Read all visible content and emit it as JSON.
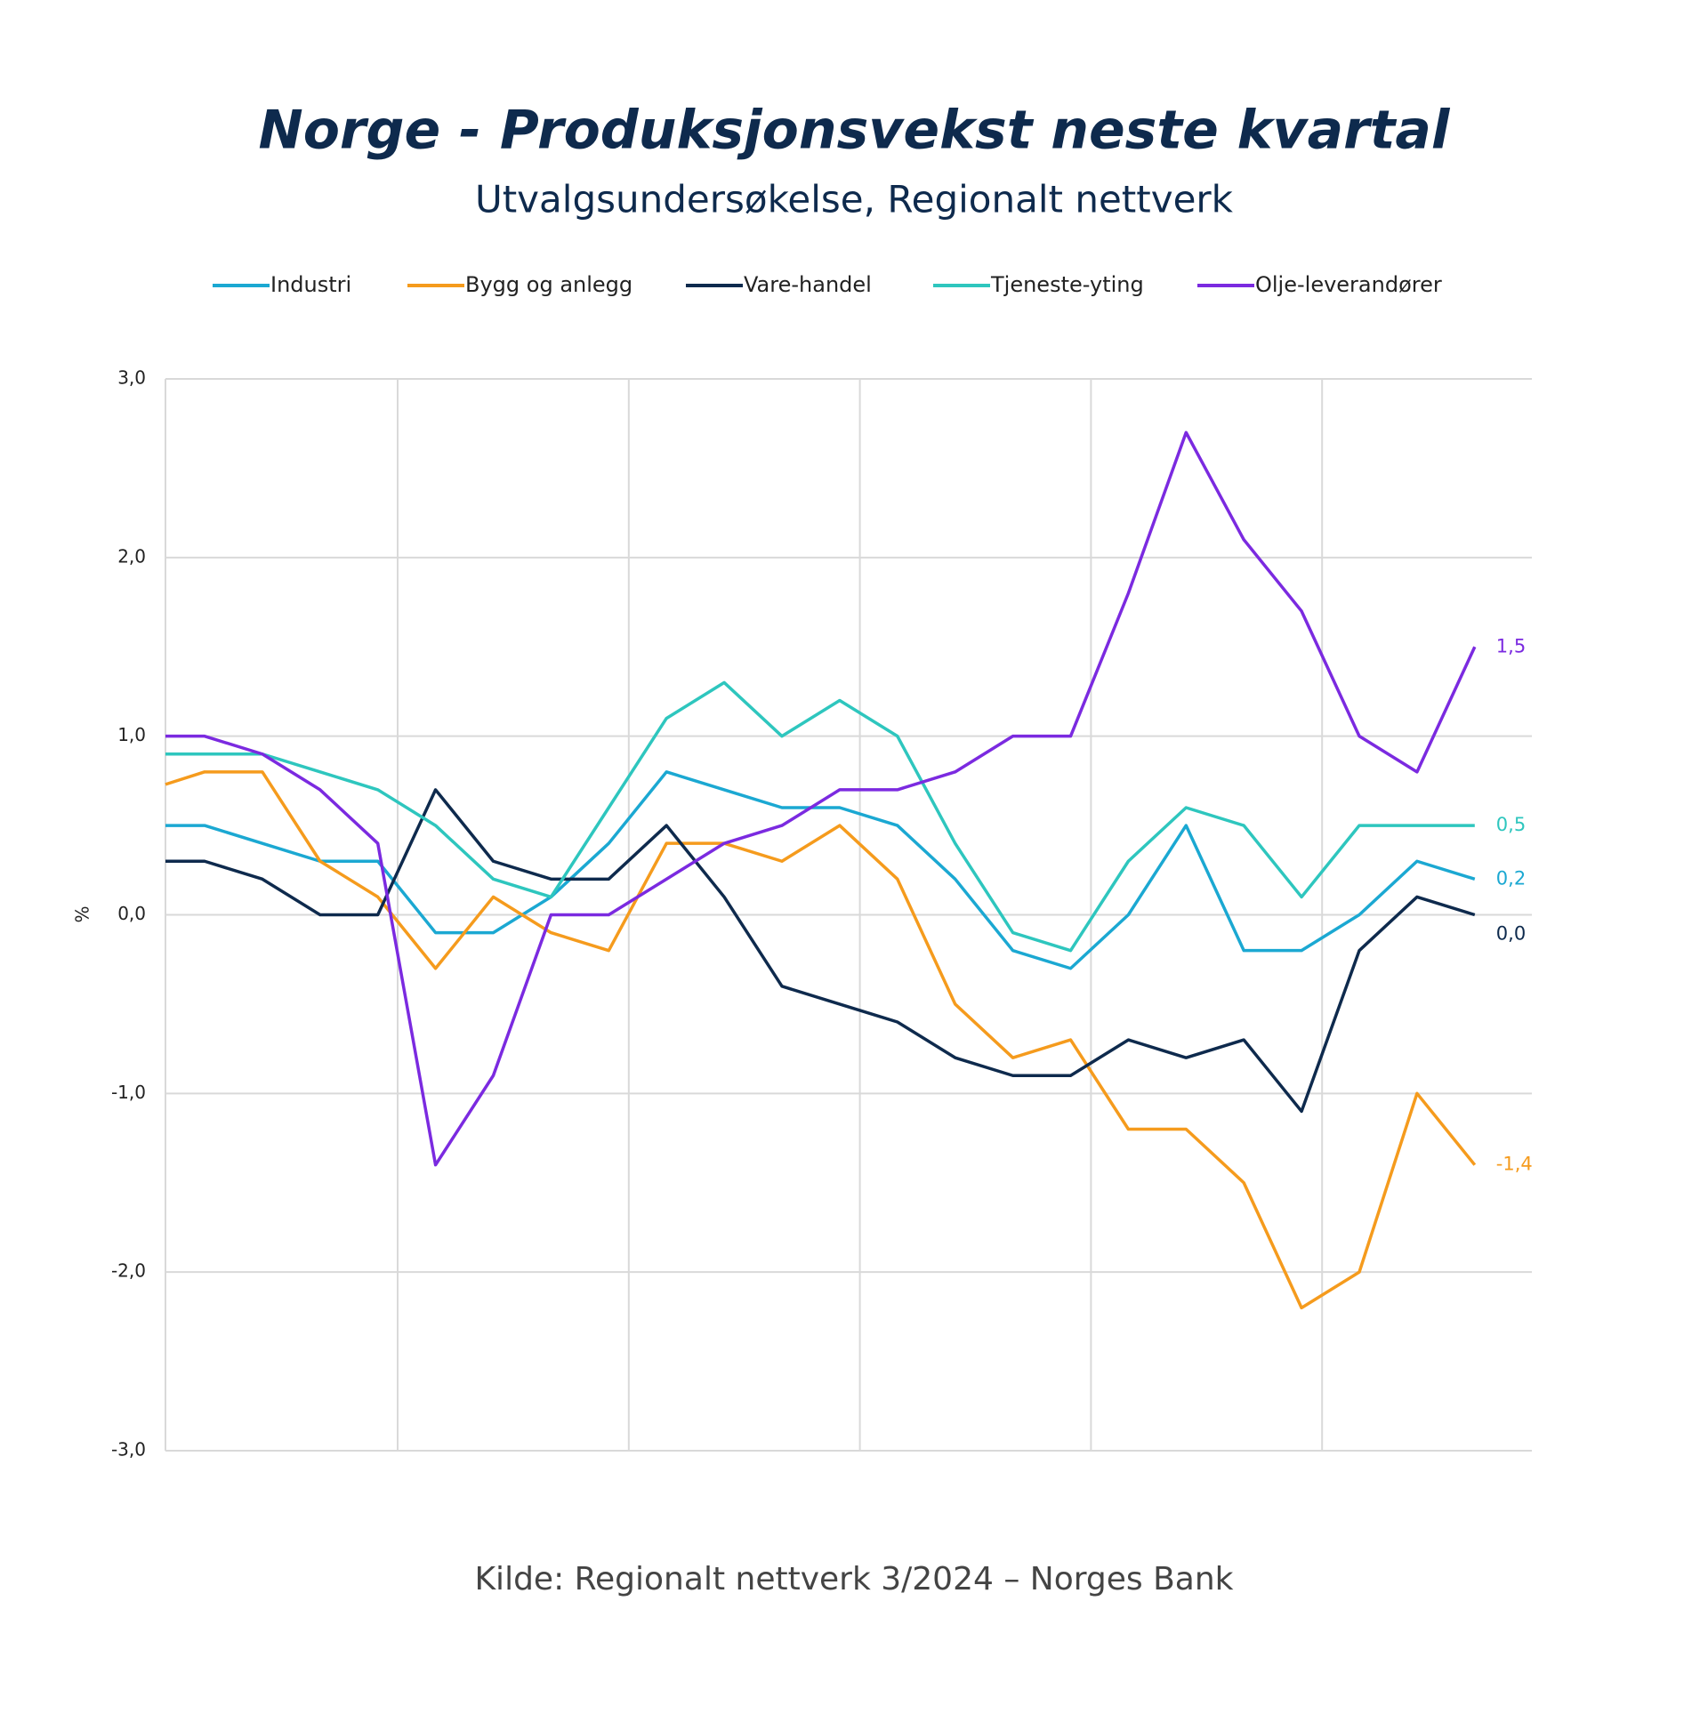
{
  "chart_data": {
    "type": "line",
    "title": "Norge - Produksjonsvekst neste kvartal",
    "subtitle": "Utvalgsundersøkelse, Regionalt nettverk",
    "source": "Kilde: Regionalt nettverk 3/2024 – Norges Bank",
    "ylabel": "%",
    "categories": [
      null,
      null,
      null,
      null,
      null,
      null,
      null,
      null,
      null,
      null,
      null,
      null,
      null,
      null,
      null,
      null,
      null,
      null,
      null,
      null,
      null,
      null,
      null,
      null
    ],
    "ylim": [
      -3,
      3
    ],
    "yticks": [
      {
        "value": -3,
        "label": "-3,0"
      },
      {
        "value": -2,
        "label": "-2,0"
      },
      {
        "value": -1,
        "label": "-1,0"
      },
      {
        "value": 0,
        "label": "0,0"
      },
      {
        "value": 1,
        "label": "1,0"
      },
      {
        "value": 2,
        "label": "2,0"
      },
      {
        "value": 3,
        "label": "3,0"
      }
    ],
    "grid": true,
    "legend": "top",
    "series": [
      {
        "name": "Industri",
        "color": "#1ba8d2",
        "values": [
          0.5,
          0.5,
          0.4,
          0.3,
          0.3,
          -0.1,
          -0.1,
          0.1,
          0.4,
          0.8,
          0.7,
          0.6,
          0.6,
          0.5,
          0.2,
          -0.2,
          -0.3,
          0.0,
          0.5,
          -0.2,
          -0.2,
          0.0,
          0.3,
          0.2
        ],
        "value_labels": [
          null,
          null,
          null,
          null,
          null,
          null,
          null,
          null,
          null,
          null,
          null,
          null,
          null,
          null,
          null,
          null,
          null,
          null,
          null,
          null,
          null,
          null,
          null,
          "0,2"
        ]
      },
      {
        "name": "Bygg og anlegg",
        "color": "#f59b1d",
        "values": [
          0.73,
          0.8,
          0.8,
          0.3,
          0.1,
          -0.3,
          0.1,
          -0.1,
          -0.2,
          0.4,
          0.4,
          0.3,
          0.5,
          0.2,
          -0.5,
          -0.8,
          -0.7,
          -1.2,
          -1.2,
          -1.5,
          -2.2,
          -2.0,
          -1.0,
          -1.4
        ],
        "value_labels": [
          null,
          null,
          null,
          null,
          null,
          null,
          null,
          null,
          null,
          null,
          null,
          null,
          null,
          null,
          null,
          null,
          null,
          null,
          null,
          null,
          null,
          null,
          null,
          "-1,4"
        ]
      },
      {
        "name": "Vare-handel",
        "color": "#0e2a4d",
        "values": [
          0.3,
          0.3,
          0.2,
          0.0,
          0.0,
          0.7,
          0.3,
          0.2,
          0.2,
          0.5,
          0.1,
          -0.4,
          -0.5,
          -0.6,
          -0.8,
          -0.9,
          -0.9,
          -0.7,
          -0.8,
          -0.7,
          -1.1,
          -0.2,
          0.1,
          0.0
        ],
        "value_labels": [
          null,
          null,
          null,
          null,
          null,
          null,
          null,
          null,
          null,
          null,
          null,
          null,
          null,
          null,
          null,
          null,
          null,
          null,
          null,
          null,
          null,
          null,
          null,
          "0,0"
        ]
      },
      {
        "name": "Tjeneste-yting",
        "color": "#2ec6be",
        "values": [
          0.9,
          0.9,
          0.9,
          0.8,
          0.7,
          0.5,
          0.2,
          0.1,
          0.6,
          1.1,
          1.3,
          1.0,
          1.2,
          1.0,
          0.4,
          -0.1,
          -0.2,
          0.3,
          0.6,
          0.5,
          0.1,
          0.5,
          0.5,
          0.5
        ],
        "value_labels": [
          null,
          null,
          null,
          null,
          null,
          null,
          null,
          null,
          null,
          null,
          null,
          null,
          null,
          null,
          null,
          null,
          null,
          null,
          null,
          null,
          null,
          null,
          null,
          "0,5"
        ]
      },
      {
        "name": "Olje-leverandører",
        "color": "#7b2ae0",
        "values": [
          1.0,
          1.0,
          0.9,
          0.7,
          0.4,
          -1.4,
          -0.9,
          0.0,
          0.0,
          0.2,
          0.4,
          0.5,
          0.7,
          0.7,
          0.8,
          1.0,
          1.0,
          1.8,
          2.7,
          2.1,
          1.7,
          1.0,
          0.8,
          1.5
        ],
        "value_labels": [
          null,
          null,
          null,
          null,
          null,
          null,
          null,
          null,
          null,
          null,
          null,
          null,
          null,
          null,
          null,
          null,
          null,
          null,
          null,
          null,
          null,
          null,
          null,
          "1,5"
        ]
      }
    ]
  }
}
